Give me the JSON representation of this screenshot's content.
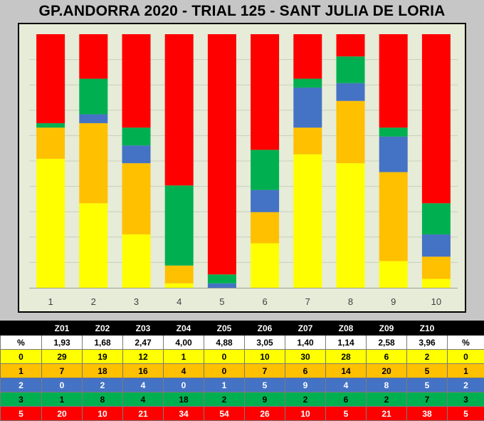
{
  "title": "GP.ANDORRA 2020 - TRIAL 125 - SANT JULIA DE LORIA",
  "colors": {
    "0": "#ffff00",
    "1": "#ffc000",
    "2": "#4472c4",
    "3": "#00b050",
    "5": "#ff0000",
    "plot_bg": "#e6ecd8",
    "page_bg": "#c6c6c6"
  },
  "chart_data": {
    "type": "bar",
    "stacked": true,
    "categories": [
      "1",
      "2",
      "3",
      "4",
      "5",
      "6",
      "7",
      "8",
      "9",
      "10"
    ],
    "series": [
      {
        "name": "0",
        "values": [
          29,
          19,
          12,
          1,
          0,
          10,
          30,
          28,
          6,
          2
        ]
      },
      {
        "name": "1",
        "values": [
          7,
          18,
          16,
          4,
          0,
          7,
          6,
          14,
          20,
          5
        ]
      },
      {
        "name": "2",
        "values": [
          0,
          2,
          4,
          0,
          1,
          5,
          9,
          4,
          8,
          5
        ]
      },
      {
        "name": "3",
        "values": [
          1,
          8,
          4,
          18,
          2,
          9,
          2,
          6,
          2,
          7
        ]
      },
      {
        "name": "5",
        "values": [
          20,
          10,
          21,
          34,
          54,
          26,
          10,
          5,
          21,
          38
        ]
      }
    ],
    "ylim": [
      0,
      57
    ],
    "grid": true,
    "legend": "none"
  },
  "table": {
    "header": [
      "",
      "Z01",
      "Z02",
      "Z03",
      "Z04",
      "Z05",
      "Z06",
      "Z07",
      "Z08",
      "Z09",
      "Z10",
      ""
    ],
    "rows": [
      [
        "%",
        "1,93",
        "1,68",
        "2,47",
        "4,00",
        "4,88",
        "3,05",
        "1,40",
        "1,14",
        "2,58",
        "3,96",
        "%"
      ],
      [
        "0",
        "29",
        "19",
        "12",
        "1",
        "0",
        "10",
        "30",
        "28",
        "6",
        "2",
        "0"
      ],
      [
        "1",
        "7",
        "18",
        "16",
        "4",
        "0",
        "7",
        "6",
        "14",
        "20",
        "5",
        "1"
      ],
      [
        "2",
        "0",
        "2",
        "4",
        "0",
        "1",
        "5",
        "9",
        "4",
        "8",
        "5",
        "2"
      ],
      [
        "3",
        "1",
        "8",
        "4",
        "18",
        "2",
        "9",
        "2",
        "6",
        "2",
        "7",
        "3"
      ],
      [
        "5",
        "20",
        "10",
        "21",
        "34",
        "54",
        "26",
        "10",
        "5",
        "21",
        "38",
        "5"
      ]
    ]
  }
}
